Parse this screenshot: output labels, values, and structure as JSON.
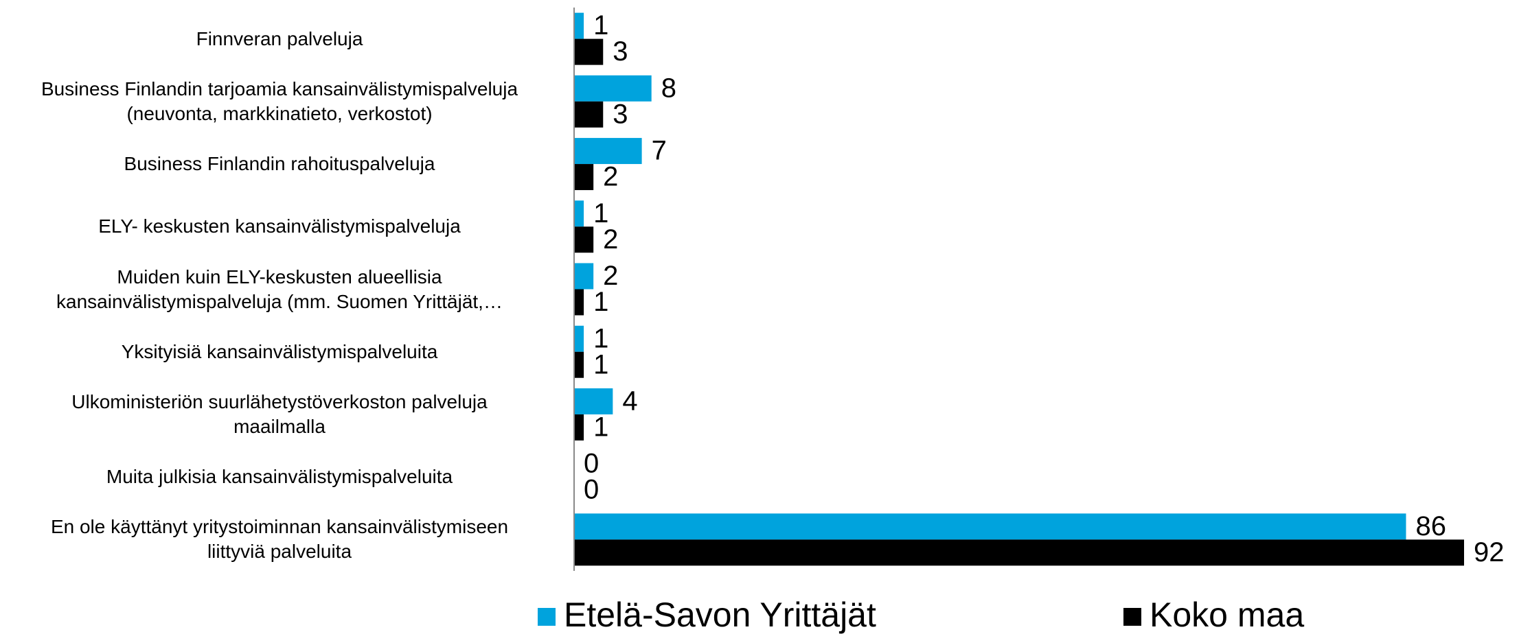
{
  "chart_data": {
    "type": "bar",
    "orientation": "horizontal",
    "categories": [
      "Finnveran palveluja",
      "Business Finlandin tarjoamia kansainvälistymispalveluja\n(neuvonta, markkinatieto, verkostot)",
      "Business Finlandin rahoituspalveluja",
      "ELY- keskusten kansainvälistymispalveluja",
      "Muiden kuin ELY-keskusten alueellisia\nkansainvälistymispalveluja (mm. Suomen Yrittäjät,…",
      "Yksityisiä kansainvälistymispalveluita",
      "Ulkoministeriön suurlähetystöverkoston palveluja\nmaailmalla",
      "Muita julkisia kansainvälistymispalveluita",
      "En ole käyttänyt yritystoiminnan kansainvälistymiseen\nliittyviä palveluita"
    ],
    "series": [
      {
        "name": "Etelä-Savon Yrittäjät",
        "color": "#00a3dd",
        "values": [
          1,
          8,
          7,
          1,
          2,
          1,
          4,
          0,
          86
        ]
      },
      {
        "name": "Koko maa",
        "color": "#000000",
        "values": [
          3,
          3,
          2,
          2,
          1,
          1,
          1,
          0,
          92
        ]
      }
    ],
    "xlim": [
      0,
      92
    ],
    "grid": false,
    "legend": "bottom"
  }
}
